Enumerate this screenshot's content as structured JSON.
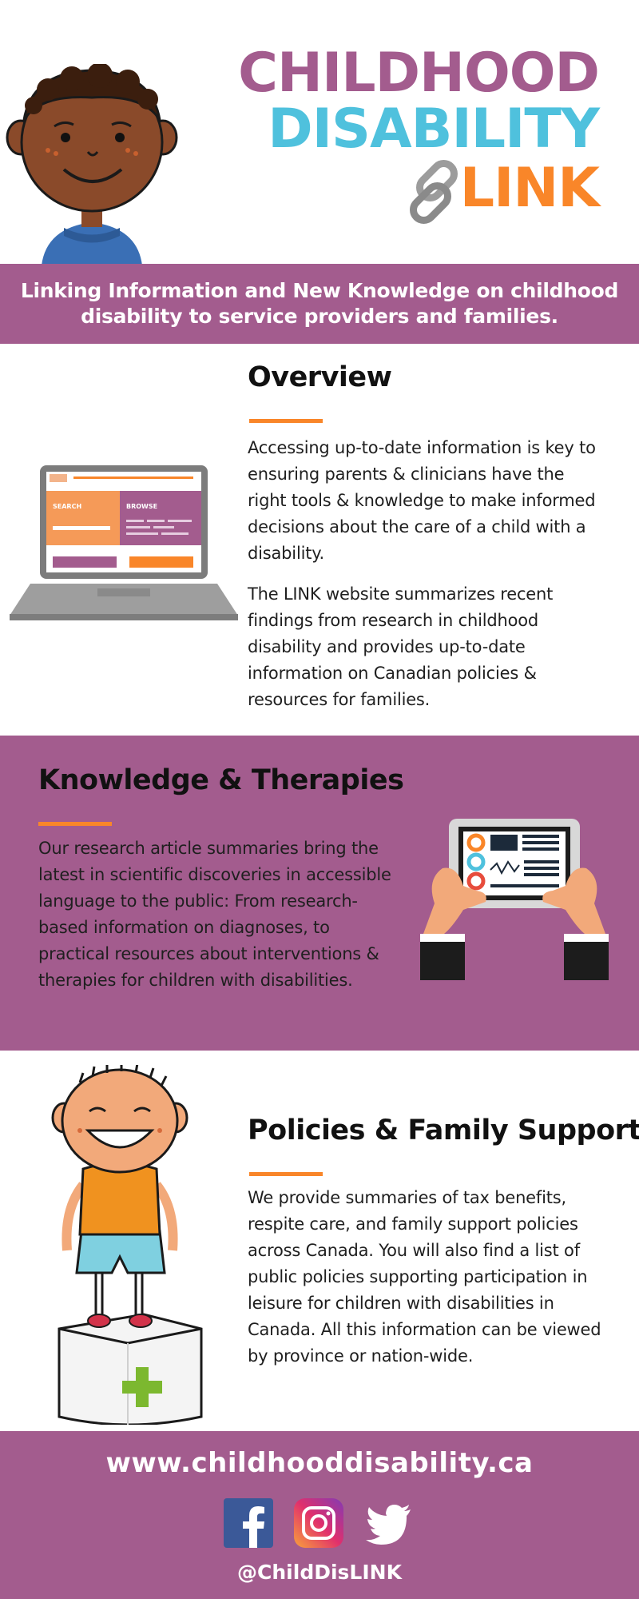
{
  "header": {
    "title_line1": "CHILDHOOD",
    "title_line2": "DISABILITY",
    "title_line3": "LINK",
    "icons": [
      "boy-character-icon",
      "chain-link-icon"
    ]
  },
  "banner": {
    "text": "Linking Information and New Knowledge on childhood disability to service providers and families."
  },
  "overview": {
    "title": "Overview",
    "paragraph1": "Accessing up-to-date information is key to ensuring parents & clinicians have the right tools & knowledge to make informed decisions about the care of a child with a disability.",
    "paragraph2": "The LINK website summarizes recent findings from research in childhood disability and provides up-to-date information on Canadian policies & resources for families.",
    "laptop_screen": {
      "search_label": "SEARCH",
      "browse_label": "BROWSE"
    }
  },
  "knowledge": {
    "title": "Knowledge & Therapies",
    "paragraph": "Our research article summaries bring the latest in scientific discoveries in accessible language to the public: From research-based information on diagnoses, to practical resources about interventions & therapies for children with disabilities."
  },
  "policies": {
    "title": "Policies & Family Support",
    "paragraph": "We provide summaries of tax benefits, respite care, and family support policies across Canada. You will also find a list of public policies supporting participation in leisure for children with disabilities in Canada. All this information can be viewed by province or nation-wide."
  },
  "footer": {
    "url": "www.childhooddisability.ca",
    "handle": "@ChildDisLINK",
    "social": [
      "facebook-icon",
      "instagram-icon",
      "twitter-icon"
    ]
  },
  "colors": {
    "purple": "#a35c8e",
    "blue": "#4fc1dd",
    "orange": "#f98629"
  }
}
